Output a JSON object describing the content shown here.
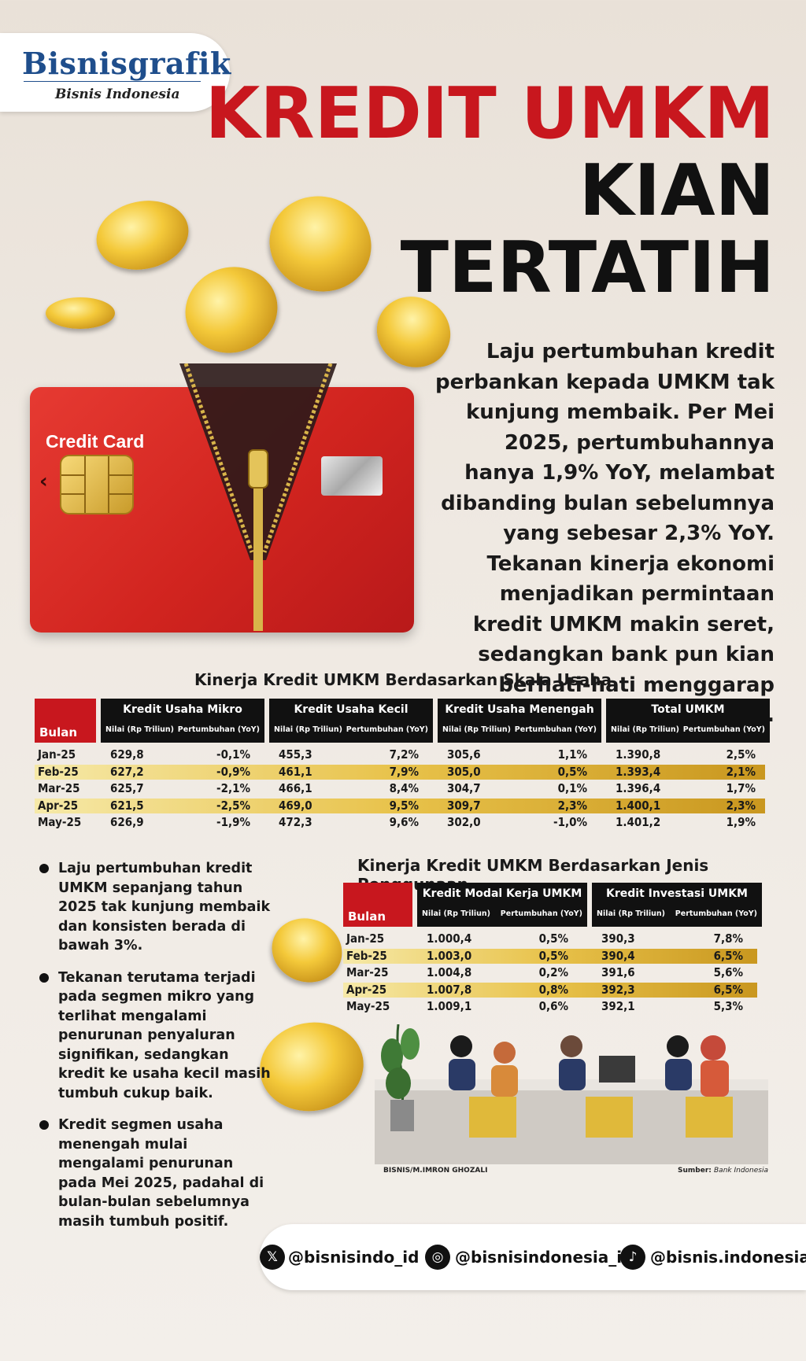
{
  "brand": {
    "name": "Bisnisgrafik",
    "sub": "Bisnis Indonesia"
  },
  "title": {
    "line1": "KREDIT UMKM",
    "line2": "KIAN",
    "line3": "TERTATIH"
  },
  "intro": "Laju pertumbuhan kredit perbankan kepada UMKM tak kunjung membaik. Per Mei 2025, pertumbuhannya hanya 1,9% YoY, melambat dibanding bulan sebelumnya yang sebesar 2,3% YoY. Tekanan kinerja ekonomi menjadikan permintaan kredit UMKM makin seret, sedangkan bank pun kian berhati-hati menggarap segmen ini.",
  "card_label": "Credit Card",
  "table1": {
    "title": "Kinerja Kredit UMKM Berdasarkan Skala Usaha",
    "bulan_label": "Bulan",
    "groups": [
      "Kredit Usaha Mikro",
      "Kredit Usaha Kecil",
      "Kredit Usaha Menengah",
      "Total UMKM"
    ],
    "sub_nilai": "Nilai (Rp Triliun)",
    "sub_growth": "Pertumbuhan (YoY)",
    "rows": [
      [
        "Jan-25",
        "629,8",
        "-0,1%",
        "455,3",
        "7,2%",
        "305,6",
        "1,1%",
        "1.390,8",
        "2,5%"
      ],
      [
        "Feb-25",
        "627,2",
        "-0,9%",
        "461,1",
        "7,9%",
        "305,0",
        "0,5%",
        "1.393,4",
        "2,1%"
      ],
      [
        "Mar-25",
        "625,7",
        "-2,1%",
        "466,1",
        "8,4%",
        "304,7",
        "0,1%",
        "1.396,4",
        "1,7%"
      ],
      [
        "Apr-25",
        "621,5",
        "-2,5%",
        "469,0",
        "9,5%",
        "309,7",
        "2,3%",
        "1.400,1",
        "2,3%"
      ],
      [
        "May-25",
        "626,9",
        "-1,9%",
        "472,3",
        "9,6%",
        "302,0",
        "-1,0%",
        "1.401,2",
        "1,9%"
      ]
    ]
  },
  "table2": {
    "title": "Kinerja Kredit UMKM Berdasarkan Jenis Penggunaan",
    "bulan_label": "Bulan",
    "groups": [
      "Kredit Modal Kerja UMKM",
      "Kredit Investasi UMKM"
    ],
    "sub_nilai": "Nilai (Rp Triliun)",
    "sub_growth": "Pertumbuhan (YoY)",
    "rows": [
      [
        "Jan-25",
        "1.000,4",
        "0,5%",
        "390,3",
        "7,8%"
      ],
      [
        "Feb-25",
        "1.003,0",
        "0,5%",
        "390,4",
        "6,5%"
      ],
      [
        "Mar-25",
        "1.004,8",
        "0,2%",
        "391,6",
        "5,6%"
      ],
      [
        "Apr-25",
        "1.007,8",
        "0,8%",
        "392,3",
        "6,5%"
      ],
      [
        "May-25",
        "1.009,1",
        "0,6%",
        "392,1",
        "5,3%"
      ]
    ]
  },
  "bullets": [
    "Laju pertumbuhan kredit UMKM sepanjang tahun 2025 tak kunjung membaik dan konsisten berada di bawah 3%.",
    "Tekanan terutama terjadi pada segmen mikro yang terlihat mengalami penurunan penyaluran signifikan, sedangkan kredit ke usaha kecil masih tumbuh cukup baik.",
    "Kredit segmen usaha menengah mulai mengalami penurunan pada Mei 2025, padahal di bulan-bulan sebelumnya masih tumbuh positif."
  ],
  "credit_left": "BISNIS/M.IMRON GHOZALI",
  "credit_right_label": "Sumber:",
  "credit_right_value": "Bank Indonesia",
  "social": [
    {
      "icon": "x-icon",
      "glyph": "𝕏",
      "handle": "@bisnisindo_id"
    },
    {
      "icon": "instagram-icon",
      "glyph": "◎",
      "handle": "@bisnisindonesia_id"
    },
    {
      "icon": "tiktok-icon",
      "glyph": "♪",
      "handle": "@bisnis.indonesia"
    }
  ],
  "colors": {
    "accent_red": "#c8171e",
    "gold": "#e8c24a",
    "dark": "#111111"
  },
  "chart_data": [
    {
      "type": "table",
      "title": "Kinerja Kredit UMKM Berdasarkan Skala Usaha",
      "categories": [
        "Jan-25",
        "Feb-25",
        "Mar-25",
        "Apr-25",
        "May-25"
      ],
      "series": [
        {
          "name": "Kredit Usaha Mikro - Nilai (Rp Triliun)",
          "values": [
            629.8,
            627.2,
            625.7,
            621.5,
            626.9
          ]
        },
        {
          "name": "Kredit Usaha Mikro - Pertumbuhan (YoY)",
          "values": [
            -0.1,
            -0.9,
            -2.1,
            -2.5,
            -1.9
          ]
        },
        {
          "name": "Kredit Usaha Kecil - Nilai (Rp Triliun)",
          "values": [
            455.3,
            461.1,
            466.1,
            469.0,
            472.3
          ]
        },
        {
          "name": "Kredit Usaha Kecil - Pertumbuhan (YoY)",
          "values": [
            7.2,
            7.9,
            8.4,
            9.5,
            9.6
          ]
        },
        {
          "name": "Kredit Usaha Menengah - Nilai (Rp Triliun)",
          "values": [
            305.6,
            305.0,
            304.7,
            309.7,
            302.0
          ]
        },
        {
          "name": "Kredit Usaha Menengah - Pertumbuhan (YoY)",
          "values": [
            1.1,
            0.5,
            0.1,
            2.3,
            -1.0
          ]
        },
        {
          "name": "Total UMKM - Nilai (Rp Triliun)",
          "values": [
            1390.8,
            1393.4,
            1396.4,
            1400.1,
            1401.2
          ]
        },
        {
          "name": "Total UMKM - Pertumbuhan (YoY)",
          "values": [
            2.5,
            2.1,
            1.7,
            2.3,
            1.9
          ]
        }
      ]
    },
    {
      "type": "table",
      "title": "Kinerja Kredit UMKM Berdasarkan Jenis Penggunaan",
      "categories": [
        "Jan-25",
        "Feb-25",
        "Mar-25",
        "Apr-25",
        "May-25"
      ],
      "series": [
        {
          "name": "Kredit Modal Kerja UMKM - Nilai (Rp Triliun)",
          "values": [
            1000.4,
            1003.0,
            1004.8,
            1007.8,
            1009.1
          ]
        },
        {
          "name": "Kredit Modal Kerja UMKM - Pertumbuhan (YoY)",
          "values": [
            0.5,
            0.5,
            0.2,
            0.8,
            0.6
          ]
        },
        {
          "name": "Kredit Investasi UMKM - Nilai (Rp Triliun)",
          "values": [
            390.3,
            390.4,
            391.6,
            392.3,
            392.1
          ]
        },
        {
          "name": "Kredit Investasi UMKM - Pertumbuhan (YoY)",
          "values": [
            7.8,
            6.5,
            5.6,
            6.5,
            5.3
          ]
        }
      ]
    }
  ]
}
